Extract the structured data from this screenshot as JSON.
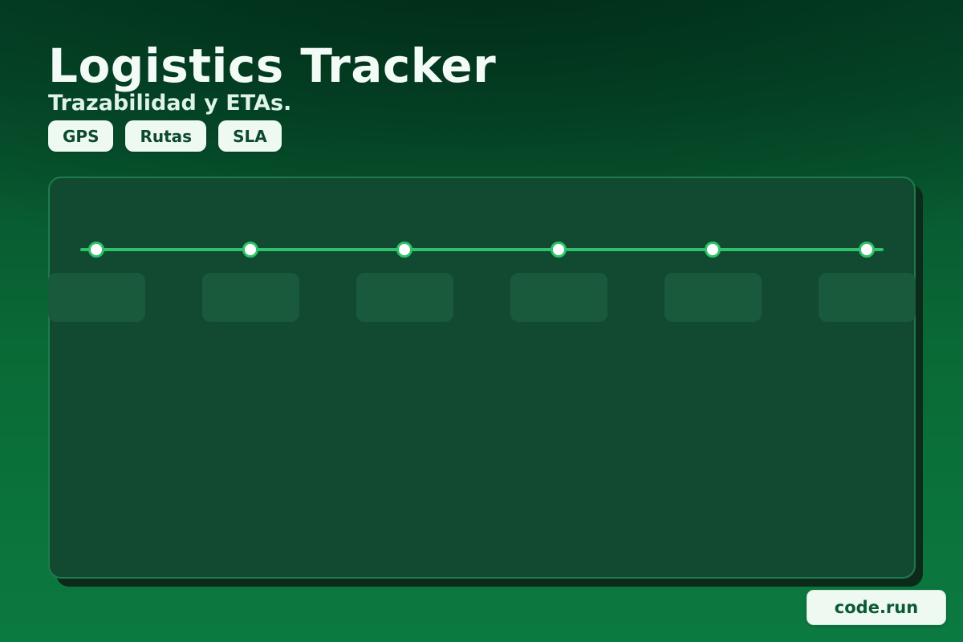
{
  "header": {
    "title": "Logistics Tracker",
    "subtitle": "Trazabilidad y ETAs."
  },
  "tags": [
    "GPS",
    "Rutas",
    "SLA"
  ],
  "timeline": {
    "stops": 6
  },
  "footer": {
    "badge": "code.run"
  },
  "colors": {
    "accent": "#2ec26a",
    "panel": "#124931",
    "chip_bg": "#eef9f2",
    "chip_text": "#0c4a2c"
  }
}
